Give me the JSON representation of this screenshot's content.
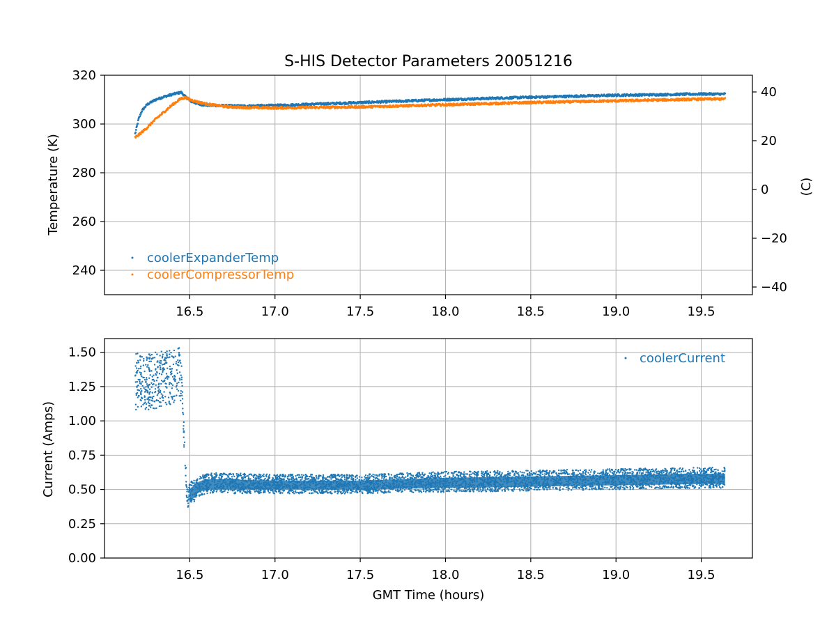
{
  "colors": {
    "blue": "#1f77b4",
    "orange": "#ff7f0e",
    "grid": "#b0b0b0"
  },
  "chart_data": [
    {
      "type": "scatter",
      "title": "S-HIS Detector Parameters 20051216",
      "xlabel": "",
      "ylabel": "Temperature (K)",
      "ylabel_right": "(C)",
      "xlim": [
        16.0,
        19.8
      ],
      "ylim": [
        230,
        320
      ],
      "ylim_right": [
        -43.15,
        46.85
      ],
      "xticks": [
        "16.5",
        "17.0",
        "17.5",
        "18.0",
        "18.5",
        "19.0",
        "19.5"
      ],
      "yticks": [
        "240",
        "260",
        "280",
        "300",
        "320"
      ],
      "yticks_right": [
        "−40",
        "−20",
        "0",
        "20",
        "40"
      ],
      "grid": true,
      "legend_position": "lower-left",
      "series": [
        {
          "name": "coolerExpanderTemp",
          "color": "#1f77b4",
          "x": [
            16.18,
            16.2,
            16.22,
            16.25,
            16.3,
            16.35,
            16.4,
            16.45,
            16.47,
            16.5,
            16.55,
            16.6,
            16.7,
            16.8,
            17.0,
            17.5,
            18.0,
            18.5,
            19.0,
            19.5,
            19.64
          ],
          "y": [
            296,
            302,
            305.5,
            308,
            310,
            311.2,
            312.2,
            313,
            311.5,
            309.5,
            308.2,
            307.7,
            307.5,
            307.4,
            307.6,
            308.8,
            310,
            311,
            311.8,
            312.3,
            312.3
          ]
        },
        {
          "name": "coolerCompressorTemp",
          "color": "#ff7f0e",
          "x": [
            16.18,
            16.2,
            16.25,
            16.3,
            16.35,
            16.4,
            16.45,
            16.48,
            16.5,
            16.55,
            16.6,
            16.7,
            16.8,
            17.0,
            17.5,
            18.0,
            18.5,
            19.0,
            19.5,
            19.64
          ],
          "y": [
            294.5,
            295.5,
            298.5,
            302,
            305,
            308,
            310.5,
            310.8,
            310,
            309,
            308.2,
            307.2,
            306.8,
            306.6,
            307,
            307.9,
            308.8,
            309.5,
            310.2,
            310.3
          ]
        }
      ]
    },
    {
      "type": "scatter",
      "title": "",
      "xlabel": "GMT Time (hours)",
      "ylabel": "Current (Amps)",
      "xlim": [
        16.0,
        19.8
      ],
      "ylim": [
        0.0,
        1.6
      ],
      "xticks": [
        "16.5",
        "17.0",
        "17.5",
        "18.0",
        "18.5",
        "19.0",
        "19.5"
      ],
      "yticks": [
        "0.00",
        "0.25",
        "0.50",
        "0.75",
        "1.00",
        "1.25",
        "1.50"
      ],
      "grid": true,
      "legend_position": "upper-right",
      "series": [
        {
          "name": "coolerCurrent",
          "color": "#1f77b4",
          "x": [
            16.18,
            16.25,
            16.3,
            16.35,
            16.4,
            16.45,
            16.46,
            16.47,
            16.48,
            16.49,
            16.5,
            16.55,
            16.6,
            16.7,
            17.0,
            17.5,
            18.0,
            18.5,
            19.0,
            19.5,
            19.64
          ],
          "y_low": [
            1.07,
            1.08,
            1.09,
            1.1,
            1.12,
            1.15,
            1.0,
            0.7,
            0.45,
            0.36,
            0.37,
            0.45,
            0.47,
            0.47,
            0.47,
            0.47,
            0.48,
            0.49,
            0.5,
            0.51,
            0.51
          ],
          "y_high": [
            1.5,
            1.49,
            1.5,
            1.51,
            1.52,
            1.55,
            1.1,
            0.9,
            0.62,
            0.5,
            0.55,
            0.6,
            0.62,
            0.62,
            0.61,
            0.61,
            0.63,
            0.64,
            0.65,
            0.66,
            0.66
          ]
        }
      ]
    }
  ]
}
